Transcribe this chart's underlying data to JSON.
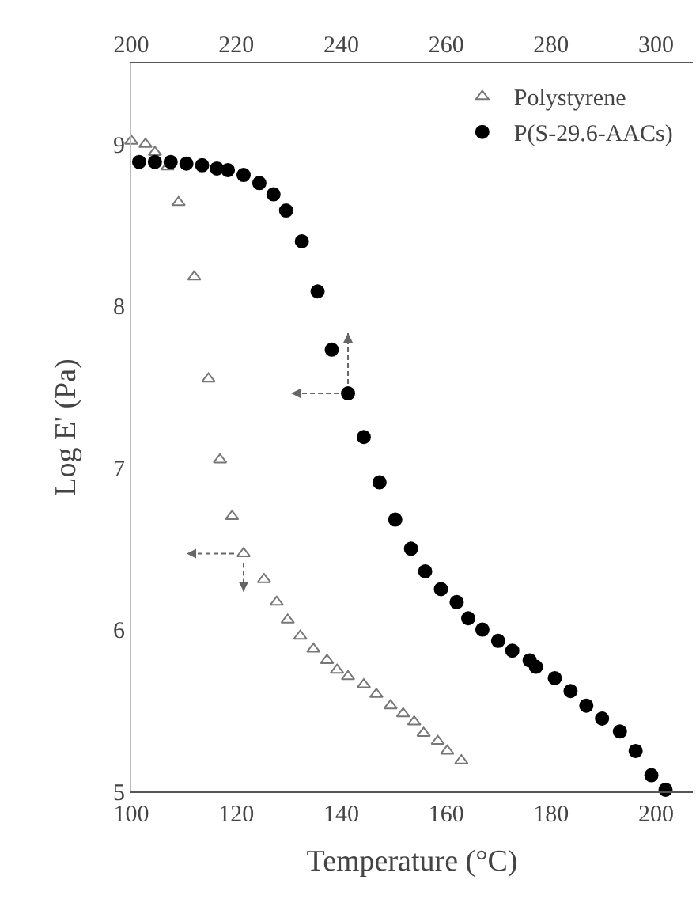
{
  "chart_data": {
    "type": "scatter",
    "xlabel": "Temperature (°C)",
    "ylabel": "Log E' (Pa)",
    "xlim": [
      100,
      207
    ],
    "xticks": [
      100,
      120,
      140,
      160,
      180,
      200
    ],
    "x2lim": [
      200,
      307
    ],
    "x2ticks": [
      200,
      220,
      240,
      260,
      280,
      300
    ],
    "ylim": [
      5,
      9.5
    ],
    "yticks": [
      5,
      6,
      7,
      8,
      9
    ],
    "grid": false,
    "legend": "top right",
    "series": [
      {
        "name": "Polystyrene",
        "color": "#777777",
        "marker": "triangle",
        "x": [
          100,
          102.7,
          104.5,
          106.9,
          109,
          112,
          114.7,
          116.9,
          119.2,
          121.4,
          125.3,
          127.7,
          129.8,
          132.2,
          134.7,
          137.3,
          139.2,
          141.3,
          144.3,
          146.7,
          149.4,
          151.8,
          153.9,
          155.7,
          158.4,
          160.2,
          162.9
        ],
        "values": [
          9.02,
          9.0,
          8.95,
          8.86,
          8.64,
          8.18,
          7.55,
          7.05,
          6.7,
          6.47,
          6.31,
          6.17,
          6.06,
          5.96,
          5.88,
          5.81,
          5.75,
          5.71,
          5.66,
          5.6,
          5.53,
          5.48,
          5.43,
          5.36,
          5.31,
          5.25,
          5.19
        ]
      },
      {
        "name": "P(S-29.6-AACs)",
        "color": "#000000",
        "marker": "circle",
        "axis": "x2",
        "x": [
          201.5,
          204.5,
          207.5,
          210.5,
          213.5,
          216.3,
          218.4,
          221.4,
          224.4,
          227.1,
          229.5,
          232.5,
          235.5,
          238.2,
          241.3,
          244.3,
          247.3,
          250.3,
          253.3,
          256,
          259,
          262,
          264.2,
          266.9,
          269.9,
          272.6,
          275.9,
          277.1,
          280.7,
          283.7,
          286.7,
          289.7,
          293.1,
          296.1,
          299.1,
          301.8
        ],
        "values": [
          8.89,
          8.89,
          8.89,
          8.88,
          8.87,
          8.85,
          8.84,
          8.81,
          8.76,
          8.69,
          8.59,
          8.4,
          8.09,
          7.73,
          7.46,
          7.19,
          6.91,
          6.68,
          6.5,
          6.36,
          6.25,
          6.17,
          6.07,
          6.0,
          5.93,
          5.87,
          5.81,
          5.77,
          5.7,
          5.62,
          5.53,
          5.45,
          5.37,
          5.25,
          5.1,
          5.01
        ]
      }
    ]
  }
}
